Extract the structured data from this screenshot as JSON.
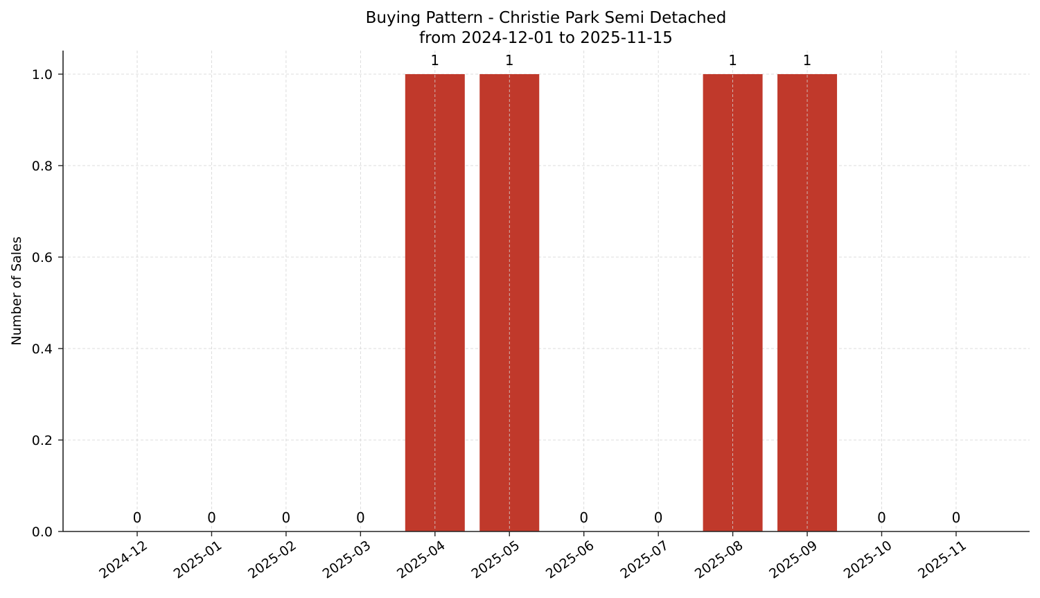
{
  "chart_data": {
    "type": "bar",
    "title": "Buying Pattern - Christie Park Semi Detached",
    "subtitle": "from 2024-12-01 to 2025-11-15",
    "xlabel": "",
    "ylabel": "Number of Sales",
    "categories": [
      "2024-12",
      "2025-01",
      "2025-02",
      "2025-03",
      "2025-04",
      "2025-05",
      "2025-06",
      "2025-07",
      "2025-08",
      "2025-09",
      "2025-10",
      "2025-11"
    ],
    "values": [
      0,
      0,
      0,
      0,
      1,
      1,
      0,
      0,
      1,
      1,
      0,
      0
    ],
    "data_labels": [
      "0",
      "0",
      "0",
      "0",
      "1",
      "1",
      "0",
      "0",
      "1",
      "1",
      "0",
      "0"
    ],
    "ylim": [
      0,
      1.05
    ],
    "yticks": [
      "0.0",
      "0.2",
      "0.4",
      "0.6",
      "0.8",
      "1.0"
    ],
    "grid": true,
    "legend": null,
    "bar_color": "#c0392b",
    "grid_color": "#d3d3d3"
  }
}
